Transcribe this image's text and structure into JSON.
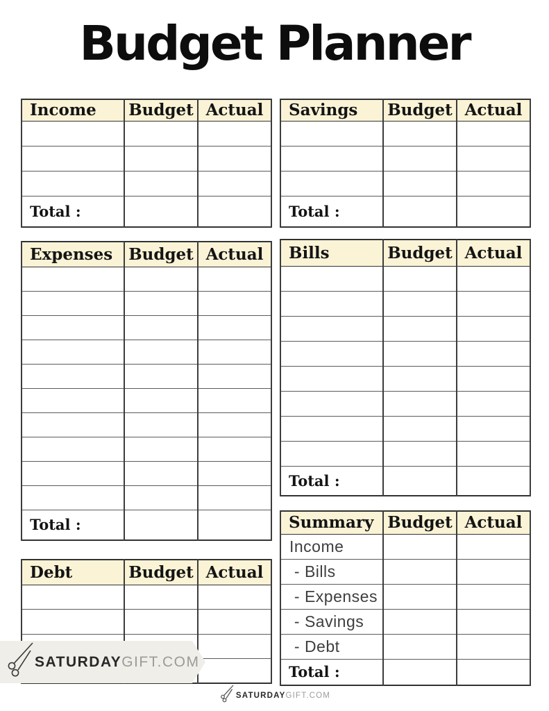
{
  "page": {
    "title": "Budget Planner"
  },
  "tables": {
    "income": {
      "title": "Income",
      "budget_label": "Budget",
      "actual_label": "Actual",
      "total_label": "Total :",
      "rows": 3
    },
    "savings": {
      "title": "Savings",
      "budget_label": "Budget",
      "actual_label": "Actual",
      "total_label": "Total :",
      "rows": 3
    },
    "expenses": {
      "title": "Expenses",
      "budget_label": "Budget",
      "actual_label": "Actual",
      "total_label": "Total :",
      "rows": 10
    },
    "bills": {
      "title": "Bills",
      "budget_label": "Budget",
      "actual_label": "Actual",
      "total_label": "Total :",
      "rows": 8
    },
    "debt": {
      "title": "Debt",
      "budget_label": "Budget",
      "actual_label": "Actual",
      "rows": 4
    },
    "summary": {
      "title": "Summary",
      "budget_label": "Budget",
      "actual_label": "Actual",
      "total_label": "Total :",
      "rows": [
        "Income",
        " - Bills",
        " - Expenses",
        " - Savings",
        " - Debt"
      ]
    }
  },
  "branding": {
    "ribbon": {
      "icon": "scissors-icon",
      "text_bold": "SATURDAY",
      "text_light": "GIFT.COM"
    },
    "footer": {
      "icon": "scissors-icon",
      "text_bold": "SATURDAY",
      "text_light": "GIFT.COM"
    }
  },
  "colors": {
    "table_header_bg": "#FAF3D6",
    "table_border": "#3C3C3C",
    "ribbon_bg": "#F0EEE9",
    "title_text": "#0D0D0D",
    "brand_bold_text": "#282828",
    "brand_light_text": "#9D9B97"
  }
}
